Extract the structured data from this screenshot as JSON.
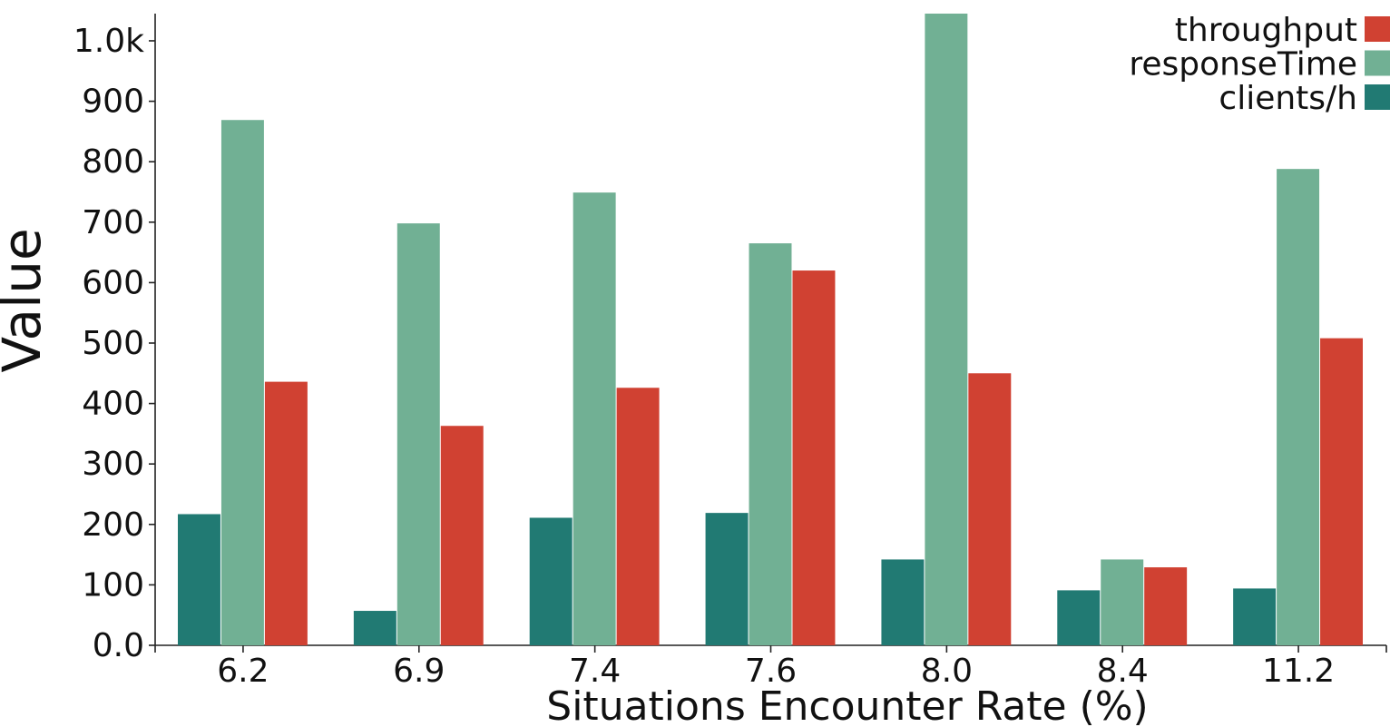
{
  "chart_data": {
    "type": "bar",
    "title": "",
    "xlabel": "Situations Encounter Rate (%)",
    "ylabel": "Value",
    "categories": [
      "6.2",
      "6.9",
      "7.4",
      "7.6",
      "8.0",
      "8.4",
      "11.2"
    ],
    "series": [
      {
        "name": "clients/h",
        "color": "#217a73",
        "values": [
          217,
          57,
          211,
          219,
          142,
          91,
          94
        ]
      },
      {
        "name": "responseTime",
        "color": "#71b094",
        "values": [
          869,
          698,
          749,
          665,
          1045,
          142,
          788
        ]
      },
      {
        "name": "throughput",
        "color": "#d04132",
        "values": [
          436,
          363,
          426,
          620,
          450,
          129,
          508
        ]
      }
    ],
    "ylim": [
      0,
      1045
    ],
    "yticks": [
      {
        "value": 0,
        "label": "0.0"
      },
      {
        "value": 100,
        "label": "100"
      },
      {
        "value": 200,
        "label": "200"
      },
      {
        "value": 300,
        "label": "300"
      },
      {
        "value": 400,
        "label": "400"
      },
      {
        "value": 500,
        "label": "500"
      },
      {
        "value": 600,
        "label": "600"
      },
      {
        "value": 700,
        "label": "700"
      },
      {
        "value": 800,
        "label": "800"
      },
      {
        "value": 900,
        "label": "900"
      },
      {
        "value": 1000,
        "label": "1.0k"
      }
    ],
    "legend": {
      "placement": "top-right",
      "order": [
        "throughput",
        "responseTime",
        "clients/h"
      ]
    },
    "grid": false
  }
}
